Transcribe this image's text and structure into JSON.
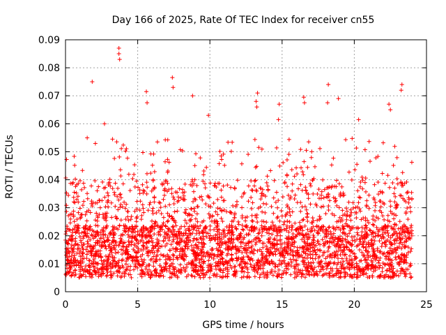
{
  "chart_data": {
    "type": "scatter",
    "title": "Day 166 of 2025, Rate Of TEC Index for receiver cn55",
    "xlabel": "GPS time / hours",
    "ylabel": "ROTI / TECUs",
    "xlim": [
      0,
      25
    ],
    "ylim": [
      0,
      0.09
    ],
    "xticks": [
      0,
      5,
      10,
      15,
      20,
      25
    ],
    "xtick_labels": [
      "0",
      "5",
      "10",
      "15",
      "20",
      "25"
    ],
    "yticks": [
      0,
      0.01,
      0.02,
      0.03,
      0.04,
      0.05,
      0.06,
      0.07,
      0.08,
      0.09
    ],
    "ytick_labels": [
      "0",
      "0.01",
      "0.02",
      "0.03",
      "0.04",
      "0.05",
      "0.06",
      "0.07",
      "0.08",
      "0.09"
    ],
    "grid": true,
    "marker": "+",
    "series_color": "#ff0000",
    "data_range_hours": [
      0,
      24
    ],
    "baseline_band": [
      0.005,
      0.03
    ],
    "notable_points": [
      {
        "x": 3.7,
        "y": 0.087
      },
      {
        "x": 3.7,
        "y": 0.085
      },
      {
        "x": 3.75,
        "y": 0.083
      },
      {
        "x": 1.85,
        "y": 0.075
      },
      {
        "x": 7.4,
        "y": 0.0765
      },
      {
        "x": 7.45,
        "y": 0.073
      },
      {
        "x": 8.8,
        "y": 0.07
      },
      {
        "x": 5.6,
        "y": 0.0715
      },
      {
        "x": 5.65,
        "y": 0.0675
      },
      {
        "x": 9.9,
        "y": 0.063
      },
      {
        "x": 13.3,
        "y": 0.071
      },
      {
        "x": 13.2,
        "y": 0.068
      },
      {
        "x": 13.25,
        "y": 0.066
      },
      {
        "x": 14.8,
        "y": 0.067
      },
      {
        "x": 14.75,
        "y": 0.0615
      },
      {
        "x": 16.5,
        "y": 0.0695
      },
      {
        "x": 16.55,
        "y": 0.0675
      },
      {
        "x": 18.2,
        "y": 0.074
      },
      {
        "x": 18.15,
        "y": 0.0675
      },
      {
        "x": 18.9,
        "y": 0.069
      },
      {
        "x": 22.4,
        "y": 0.067
      },
      {
        "x": 22.5,
        "y": 0.065
      },
      {
        "x": 23.3,
        "y": 0.074
      },
      {
        "x": 23.25,
        "y": 0.072
      },
      {
        "x": 20.3,
        "y": 0.0615
      },
      {
        "x": 2.7,
        "y": 0.06
      }
    ]
  }
}
